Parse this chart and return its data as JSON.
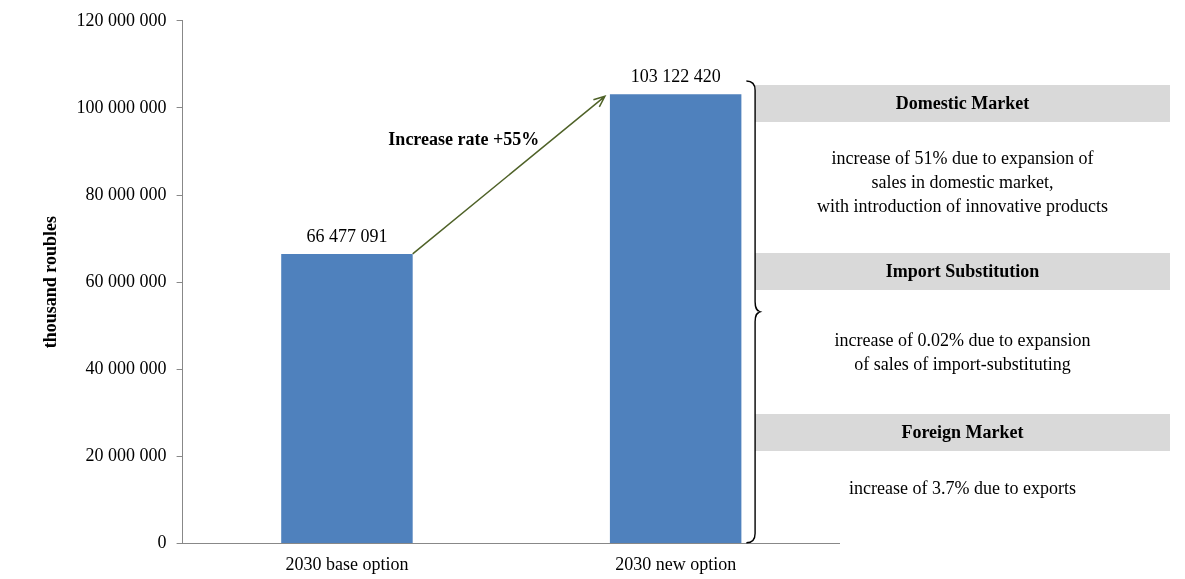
{
  "chart_data": {
    "type": "bar",
    "ylabel": "thousand roubles",
    "categories": [
      "2030 base option",
      "2030 new option"
    ],
    "values": [
      66477091,
      103122420
    ],
    "color": "#4f81bd",
    "value_labels": [
      "66 477 091",
      "103 122 420"
    ],
    "ylim": [
      0,
      120000000
    ],
    "yticks": [
      0,
      {
        "value": 20000000,
        "label": "20 000 000"
      },
      {
        "value": 40000000,
        "label": "40 000 000"
      },
      {
        "value": 60000000,
        "label": "60 000 000"
      },
      {
        "value": 80000000,
        "label": "80 000 000"
      },
      {
        "value": 100000000,
        "label": "100 000 000"
      },
      {
        "value": 120000000,
        "label": "120 000 000"
      }
    ],
    "grid": false,
    "legend": false,
    "annotations": [
      "Increase rate +55%",
      "Domestic Market",
      "increase of 51% due to expansion of\nsales in domestic market,\nwith introduction of innovative products",
      "Import Substitution",
      "increase of 0.02% due to expansion\nof sales of import-substituting",
      "Foreign Market",
      "increase of 3.7% due to exports"
    ]
  }
}
